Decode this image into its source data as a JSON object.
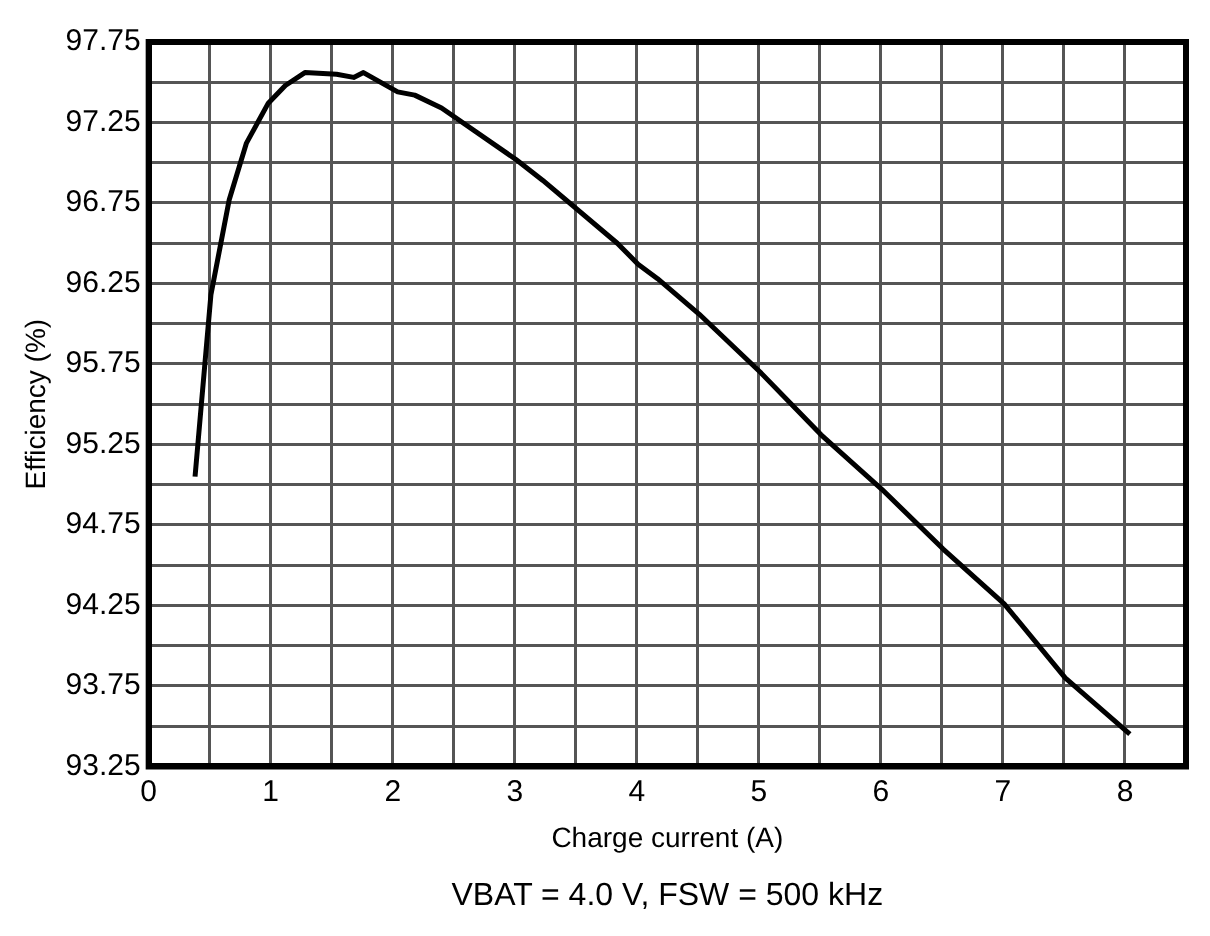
{
  "chart_data": {
    "type": "line",
    "xlabel": "Charge current (A)",
    "ylabel": "Efficiency (%)",
    "annotations": [
      "VBAT = 4.0 V, FSW = 500 kHz"
    ],
    "x": [
      0.38,
      0.51,
      0.66,
      0.8,
      0.98,
      1.12,
      1.28,
      1.54,
      1.68,
      1.76,
      2.04,
      2.18,
      2.4,
      3.01,
      3.23,
      3.84,
      4.01,
      4.17,
      4.51,
      5.01,
      5.51,
      6.01,
      6.51,
      7.01,
      7.51,
      8.04
    ],
    "series": [
      {
        "color": "#000000",
        "values": [
          95.05,
          96.18,
          96.77,
          97.12,
          97.37,
          97.48,
          97.56,
          97.55,
          97.53,
          97.56,
          97.44,
          97.42,
          97.34,
          97.02,
          96.89,
          96.5,
          96.37,
          96.28,
          96.06,
          95.7,
          95.31,
          94.97,
          94.6,
          94.26,
          93.8,
          93.45
        ]
      }
    ],
    "xlim": [
      0,
      8.5
    ],
    "xticks": [
      0,
      {
        "value": 0.5,
        "label": null
      },
      1,
      {
        "value": 1.5,
        "label": null
      },
      2,
      {
        "value": 2.5,
        "label": null
      },
      3,
      {
        "value": 3.5,
        "label": null
      },
      4,
      {
        "value": 4.5,
        "label": null
      },
      5,
      {
        "value": 5.5,
        "label": null
      },
      6,
      {
        "value": 6.5,
        "label": null
      },
      7,
      {
        "value": 7.5,
        "label": null
      },
      8,
      {
        "value": 8.5,
        "label": null
      }
    ],
    "ylim": [
      93.25,
      97.75
    ],
    "yticks": [
      93.25,
      {
        "value": 93.5,
        "label": null
      },
      93.75,
      {
        "value": 94,
        "label": null
      },
      94.25,
      {
        "value": 94.5,
        "label": null
      },
      94.75,
      {
        "value": 95,
        "label": null
      },
      95.25,
      {
        "value": 95.5,
        "label": null
      },
      95.75,
      {
        "value": 96,
        "label": null
      },
      96.25,
      {
        "value": 96.5,
        "label": null
      },
      96.75,
      {
        "value": 97,
        "label": null
      },
      97.25,
      {
        "value": 97.5,
        "label": null
      },
      97.75
    ],
    "grid": true,
    "legend": false,
    "marker": "none",
    "line_style": "solid"
  }
}
